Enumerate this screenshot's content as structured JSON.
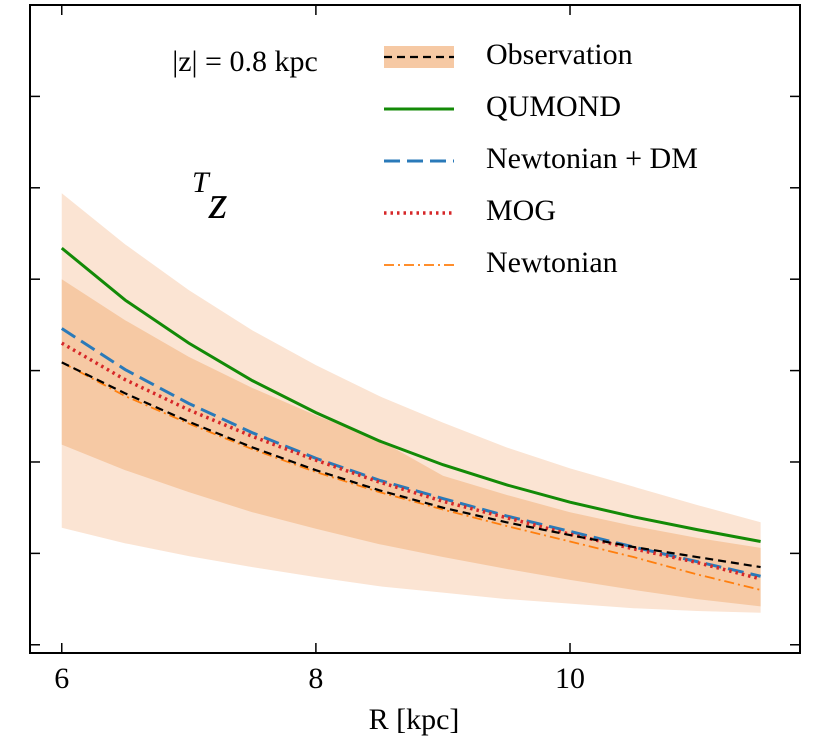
{
  "chart_data": {
    "type": "line",
    "x_label": "R [kpc]",
    "annotations": [
      {
        "text": "|z| = 0.8 kpc"
      },
      {
        "text": "T",
        "subscript": "z"
      }
    ],
    "x": [
      6,
      6.5,
      7,
      7.5,
      8,
      8.5,
      9,
      9.5,
      10,
      10.5,
      11,
      11.5
    ],
    "xlim": [
      5.75,
      11.81
    ],
    "xticks": [
      6,
      8,
      10
    ],
    "ylim": [
      -0.09,
      7.0
    ],
    "yticks": [
      0,
      1,
      2,
      3,
      4,
      5,
      6
    ],
    "legend": "upper right",
    "series": [
      {
        "name": "Observation",
        "color": "#000000",
        "style": "dashed",
        "values": [
          3.09,
          2.75,
          2.44,
          2.16,
          1.91,
          1.69,
          1.5,
          1.34,
          1.2,
          1.07,
          0.96,
          0.85
        ],
        "bands": [
          {
            "color": "#fbe4d3",
            "lower": [
              1.28,
              1.11,
              0.97,
              0.85,
              0.74,
              0.64,
              0.57,
              0.5,
              0.45,
              0.4,
              0.37,
              0.35
            ],
            "upper": [
              4.94,
              4.38,
              3.88,
              3.44,
              3.06,
              2.72,
              2.43,
              2.16,
              1.93,
              1.73,
              1.53,
              1.34
            ]
          },
          {
            "color": "#f6c9a4",
            "lower": [
              2.19,
              1.91,
              1.67,
              1.45,
              1.27,
              1.1,
              0.96,
              0.83,
              0.71,
              0.6,
              0.5,
              0.42
            ],
            "upper": [
              4.0,
              3.55,
              3.15,
              2.81,
              2.51,
              2.24,
              1.85,
              1.64,
              1.45,
              1.3,
              1.17,
              1.06
            ]
          }
        ]
      },
      {
        "name": "QUMOND",
        "color": "#138a07",
        "style": "solid",
        "values": [
          4.34,
          3.77,
          3.3,
          2.89,
          2.54,
          2.23,
          1.97,
          1.75,
          1.56,
          1.4,
          1.26,
          1.13
        ]
      },
      {
        "name": "Newtonian + DM",
        "color": "#2a7ab9",
        "style": "longdash",
        "values": [
          3.46,
          3.01,
          2.64,
          2.32,
          2.04,
          1.8,
          1.6,
          1.41,
          1.24,
          1.07,
          0.91,
          0.75
        ]
      },
      {
        "name": "MOG",
        "color": "#d62728",
        "style": "dotted",
        "values": [
          3.3,
          2.9,
          2.57,
          2.28,
          2.02,
          1.78,
          1.57,
          1.39,
          1.21,
          1.05,
          0.9,
          0.72
        ]
      },
      {
        "name": "Newtonian",
        "color": "#ff7f0e",
        "style": "dashdot",
        "values": [
          3.09,
          2.72,
          2.42,
          2.14,
          1.89,
          1.67,
          1.48,
          1.3,
          1.13,
          0.96,
          0.77,
          0.6
        ]
      }
    ]
  }
}
